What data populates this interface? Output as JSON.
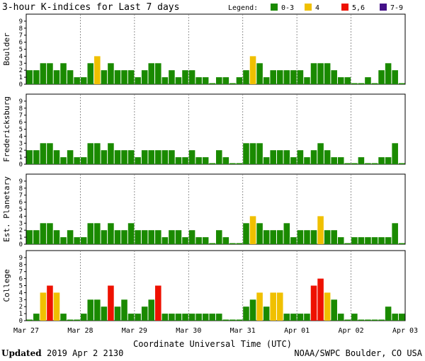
{
  "header": {
    "title": "3-hour K-indices for Last 7 days",
    "legend_label": "Legend:"
  },
  "legend": [
    {
      "label": "0-3",
      "color": "#1a8a00"
    },
    {
      "label": "4",
      "color": "#f0c000"
    },
    {
      "label": "5,6",
      "color": "#ee1100"
    },
    {
      "label": "7-9",
      "color": "#441188"
    }
  ],
  "footer": {
    "updated_label": "Updated",
    "updated_value": "2019 Apr  2 2130",
    "source": "NOAA/SWPC Boulder, CO USA"
  },
  "chart_data": {
    "type": "bar",
    "title": "3-hour K-indices for Last 7 days",
    "xlabel": "Coordinate Universal Time (UTC)",
    "x_ticks": [
      "Mar 27",
      "Mar 28",
      "Mar 29",
      "Mar 30",
      "Mar 31",
      "Apr 01",
      "Apr 02",
      "Apr 03"
    ],
    "y_ticks": [
      "0",
      "1",
      "2",
      "3",
      "4",
      "5",
      "6",
      "7",
      "8",
      "9"
    ],
    "ylim": [
      0,
      9
    ],
    "interval_hours": 3,
    "color_scale": [
      {
        "range": "0-3",
        "color": "#1a8a00"
      },
      {
        "range": "4",
        "color": "#f0c000"
      },
      {
        "range": "5,6",
        "color": "#ee1100"
      },
      {
        "range": "7-9",
        "color": "#441188"
      }
    ],
    "series": [
      {
        "name": "Boulder",
        "values": [
          2,
          2,
          3,
          3,
          2,
          3,
          2,
          1,
          1,
          3,
          4,
          2,
          3,
          2,
          2,
          2,
          1,
          2,
          3,
          3,
          1,
          2,
          1,
          2,
          2,
          1,
          1,
          0,
          1,
          1,
          0,
          1,
          2,
          4,
          3,
          1,
          2,
          2,
          2,
          2,
          2,
          1,
          3,
          3,
          3,
          2,
          1,
          1,
          0,
          0,
          1,
          0,
          2,
          3,
          2,
          0
        ]
      },
      {
        "name": "Fredericksburg",
        "values": [
          2,
          2,
          3,
          3,
          2,
          1,
          2,
          1,
          1,
          3,
          3,
          2,
          3,
          2,
          2,
          2,
          1,
          2,
          2,
          2,
          2,
          2,
          1,
          1,
          2,
          1,
          1,
          0,
          2,
          1,
          0,
          0,
          3,
          3,
          3,
          1,
          2,
          2,
          2,
          1,
          2,
          1,
          2,
          3,
          2,
          1,
          1,
          0,
          0,
          1,
          0,
          0,
          1,
          1,
          3,
          0
        ]
      },
      {
        "name": "Est. Planetary",
        "values": [
          2,
          2,
          3,
          3,
          2,
          1,
          2,
          1,
          1,
          3,
          3,
          2,
          3,
          2,
          2,
          3,
          2,
          2,
          2,
          2,
          1,
          2,
          2,
          1,
          2,
          1,
          1,
          0,
          2,
          1,
          0,
          0,
          3,
          4,
          3,
          2,
          2,
          2,
          3,
          1,
          2,
          2,
          2,
          4,
          2,
          2,
          1,
          0,
          1,
          1,
          1,
          1,
          1,
          1,
          3,
          0
        ]
      },
      {
        "name": "College",
        "values": [
          0,
          1,
          4,
          5,
          4,
          1,
          0,
          0,
          1,
          3,
          3,
          2,
          5,
          2,
          3,
          1,
          1,
          2,
          3,
          5,
          1,
          1,
          1,
          1,
          1,
          1,
          1,
          1,
          1,
          0,
          0,
          0,
          2,
          3,
          4,
          2,
          4,
          4,
          1,
          1,
          1,
          1,
          5,
          6,
          4,
          3,
          1,
          0,
          1,
          0,
          0,
          0,
          0,
          2,
          1,
          1
        ]
      }
    ]
  }
}
